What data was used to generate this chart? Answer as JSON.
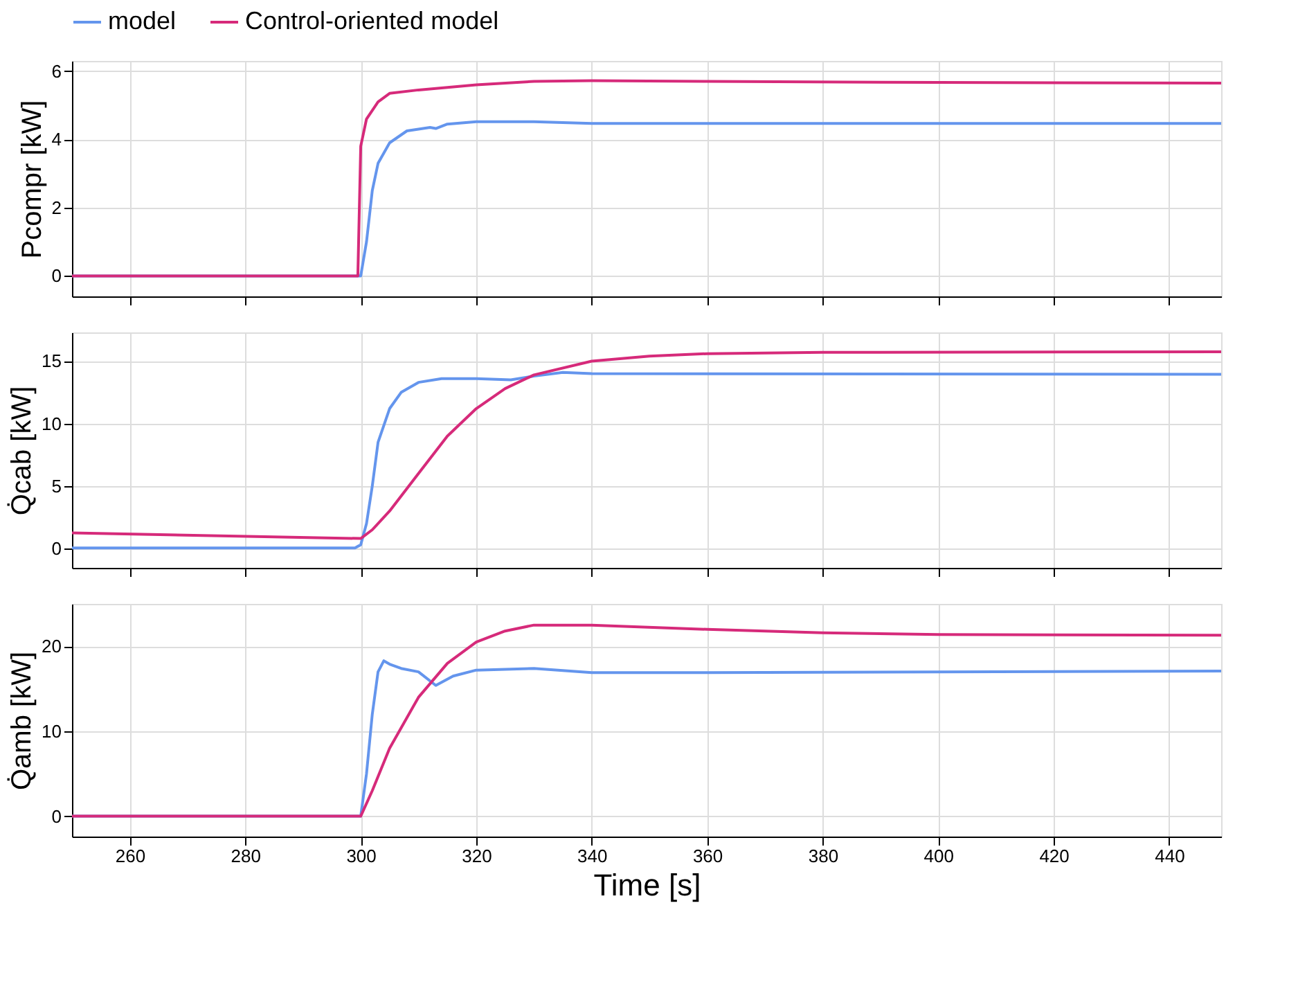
{
  "chart_data": [
    {
      "type": "line",
      "ylabel": "Pcompr [kW]",
      "xlim": [
        250,
        449
      ],
      "xticks": [
        260,
        280,
        300,
        320,
        340,
        360,
        380,
        400,
        420,
        440
      ],
      "ylim": [
        -0.6,
        6.3
      ],
      "yticks": [
        0,
        2,
        4,
        6
      ],
      "grid": true,
      "legend": "top",
      "tick_labels": "y",
      "line_style": "solid",
      "marker": "none",
      "series": [
        {
          "name": "model",
          "color": "#6495ed",
          "x": [
            250,
            300,
            301,
            302,
            303,
            305,
            308,
            312,
            313,
            315,
            320,
            330,
            340,
            449
          ],
          "values": [
            0,
            0,
            1.0,
            2.5,
            3.3,
            3.9,
            4.25,
            4.35,
            4.32,
            4.45,
            4.52,
            4.52,
            4.47,
            4.47
          ]
        },
        {
          "name": "Control-oriented model",
          "color": "#d62a7a",
          "x": [
            250,
            299.5,
            300,
            301,
            303,
            305,
            310,
            320,
            330,
            340,
            360,
            400,
            449
          ],
          "values": [
            0,
            0,
            3.8,
            4.6,
            5.1,
            5.35,
            5.45,
            5.6,
            5.7,
            5.72,
            5.7,
            5.67,
            5.65
          ]
        }
      ]
    },
    {
      "type": "line",
      "ylabel": "Q̇cab [kW]",
      "xlim": [
        250,
        449
      ],
      "xticks": [
        260,
        280,
        300,
        320,
        340,
        360,
        380,
        400,
        420,
        440
      ],
      "ylim": [
        -1.55,
        17.3
      ],
      "yticks": [
        0,
        5,
        10,
        15
      ],
      "grid": true,
      "tick_labels": "y",
      "line_style": "solid",
      "marker": "none",
      "series": [
        {
          "name": "model",
          "color": "#6495ed",
          "x": [
            250,
            299,
            300,
            301,
            302,
            303,
            305,
            307,
            310,
            314,
            320,
            326,
            330,
            335,
            340,
            449
          ],
          "values": [
            0.05,
            0.05,
            0.3,
            2,
            5,
            8.5,
            11.2,
            12.5,
            13.3,
            13.6,
            13.6,
            13.5,
            13.8,
            14.1,
            14.0,
            13.95
          ]
        },
        {
          "name": "Control-oriented model",
          "color": "#d62a7a",
          "x": [
            250,
            300,
            302,
            305,
            310,
            315,
            320,
            325,
            330,
            340,
            350,
            360,
            380,
            449
          ],
          "values": [
            1.25,
            0.8,
            1.5,
            3.0,
            6.0,
            9.0,
            11.2,
            12.8,
            13.9,
            15.0,
            15.4,
            15.6,
            15.7,
            15.75
          ]
        }
      ]
    },
    {
      "type": "line",
      "ylabel": "Q̇amb [kW]",
      "xlabel": "Time [s]",
      "xlim": [
        250,
        449
      ],
      "xticks": [
        260,
        280,
        300,
        320,
        340,
        360,
        380,
        400,
        420,
        440
      ],
      "ylim": [
        -2.4,
        25
      ],
      "yticks": [
        0,
        10,
        20
      ],
      "grid": true,
      "line_style": "solid",
      "marker": "none",
      "series": [
        {
          "name": "model",
          "color": "#6495ed",
          "x": [
            250,
            300,
            301,
            302,
            303,
            304,
            305,
            307,
            310,
            313,
            316,
            320,
            330,
            340,
            360,
            449
          ],
          "values": [
            0,
            0,
            5,
            12,
            17,
            18.3,
            17.9,
            17.4,
            17.0,
            15.4,
            16.5,
            17.2,
            17.4,
            16.9,
            16.9,
            17.1
          ]
        },
        {
          "name": "Control-oriented model",
          "color": "#d62a7a",
          "x": [
            250,
            300,
            302,
            305,
            310,
            315,
            320,
            325,
            330,
            340,
            360,
            380,
            400,
            449
          ],
          "values": [
            0,
            0,
            3,
            8,
            14,
            18,
            20.5,
            21.8,
            22.5,
            22.5,
            22.0,
            21.6,
            21.4,
            21.3
          ]
        }
      ]
    }
  ]
}
